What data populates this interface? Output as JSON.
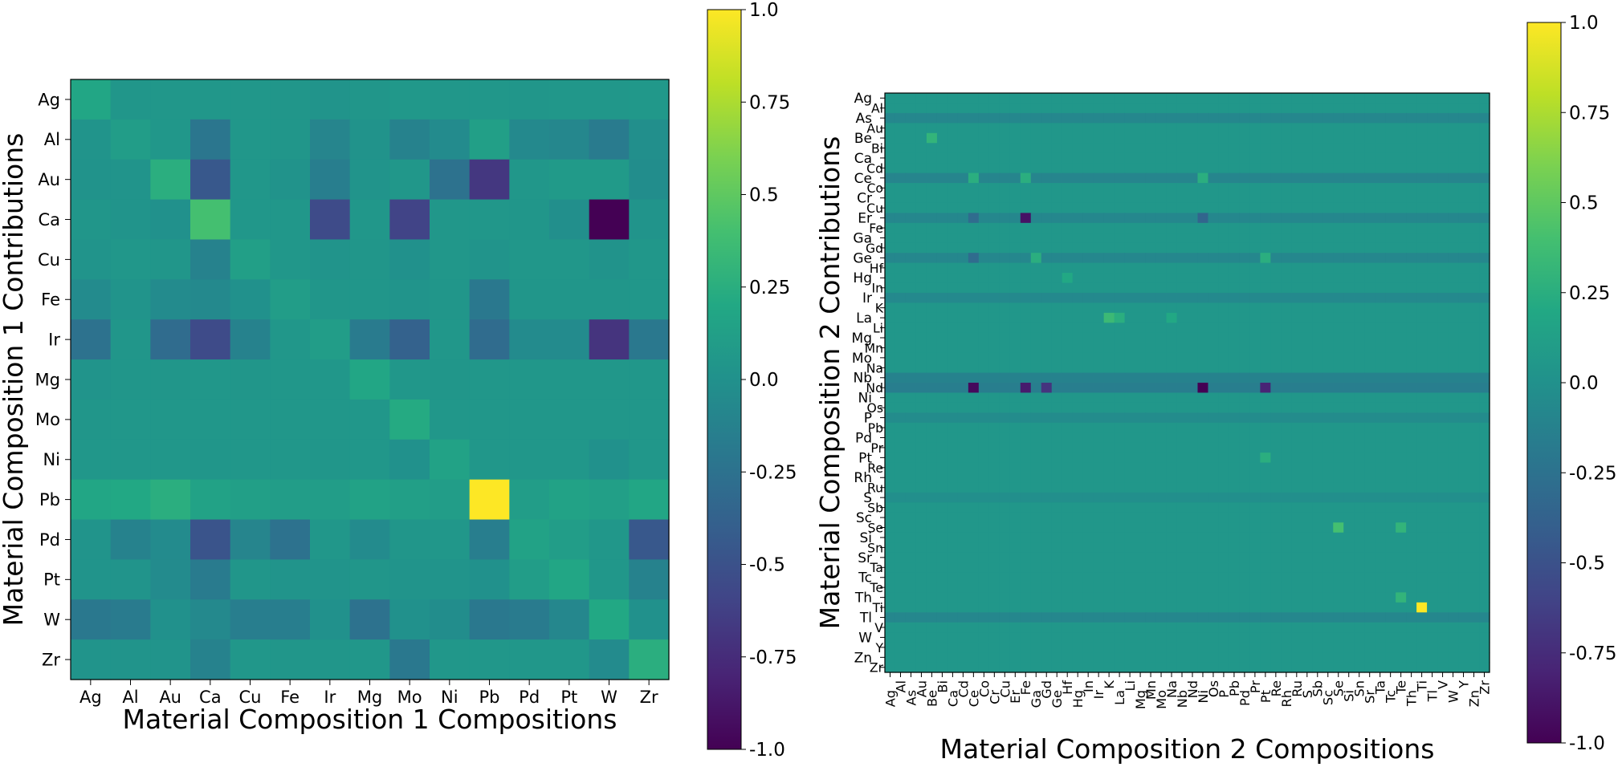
{
  "chart_data": [
    {
      "type": "heatmap",
      "title": "",
      "xlabel": "Material Composition 1 Compositions",
      "ylabel": "Material Composition 1 Contributions",
      "x_categories": [
        "Ag",
        "Al",
        "Au",
        "Ca",
        "Cu",
        "Fe",
        "Ir",
        "Mg",
        "Mo",
        "Ni",
        "Pb",
        "Pd",
        "Pt",
        "W",
        "Zr"
      ],
      "y_categories": [
        "Ag",
        "Al",
        "Au",
        "Ca",
        "Cu",
        "Fe",
        "Ir",
        "Mg",
        "Mo",
        "Ni",
        "Pb",
        "Pd",
        "Pt",
        "W",
        "Zr"
      ],
      "colormap": "viridis",
      "vmin": -1.0,
      "vmax": 1.0,
      "colorbar_ticks": [
        "1.0",
        "0.75",
        "0.5",
        "0.25",
        "0.0",
        "-0.25",
        "-0.5",
        "-0.75",
        "-1.0"
      ],
      "values": [
        [
          0.18,
          0.04,
          0.05,
          0.05,
          0.05,
          0.04,
          0.03,
          0.04,
          0.06,
          0.05,
          0.05,
          0.04,
          0.05,
          0.05,
          0.06
        ],
        [
          0.03,
          0.1,
          0.05,
          -0.22,
          0.05,
          0.04,
          -0.1,
          0.02,
          -0.12,
          -0.05,
          0.12,
          -0.06,
          -0.08,
          -0.18,
          -0.02
        ],
        [
          0.02,
          0.03,
          0.25,
          -0.45,
          0.05,
          0.02,
          -0.15,
          0.03,
          0.05,
          -0.25,
          -0.68,
          0.05,
          0.08,
          0.08,
          -0.03
        ],
        [
          0.04,
          0.03,
          0.0,
          0.4,
          0.05,
          0.05,
          -0.55,
          0.05,
          -0.6,
          0.05,
          0.05,
          0.04,
          -0.02,
          -1.0,
          0.03
        ],
        [
          0.03,
          0.05,
          0.04,
          -0.12,
          0.12,
          0.05,
          0.03,
          0.04,
          0.0,
          0.05,
          0.03,
          0.05,
          0.05,
          0.02,
          0.05
        ],
        [
          -0.05,
          0.03,
          -0.05,
          -0.06,
          0.0,
          0.1,
          0.04,
          0.04,
          0.03,
          0.04,
          -0.2,
          0.04,
          0.04,
          0.04,
          0.05
        ],
        [
          -0.25,
          0.04,
          -0.3,
          -0.55,
          -0.12,
          0.05,
          0.1,
          -0.18,
          -0.38,
          0.05,
          -0.3,
          -0.05,
          -0.05,
          -0.7,
          -0.2
        ],
        [
          0.03,
          0.04,
          0.04,
          0.05,
          0.04,
          0.05,
          0.05,
          0.18,
          0.05,
          0.04,
          0.05,
          0.05,
          0.05,
          0.05,
          0.05
        ],
        [
          0.04,
          0.05,
          0.05,
          0.05,
          0.05,
          0.05,
          0.05,
          0.05,
          0.22,
          0.05,
          0.05,
          0.05,
          0.05,
          0.05,
          0.05
        ],
        [
          0.05,
          0.05,
          0.05,
          0.04,
          0.05,
          0.05,
          0.04,
          0.05,
          0.0,
          0.15,
          0.05,
          0.05,
          0.05,
          0.0,
          0.05
        ],
        [
          0.18,
          0.2,
          0.25,
          0.15,
          0.12,
          0.1,
          0.1,
          0.15,
          0.12,
          0.1,
          1.0,
          0.1,
          0.15,
          0.12,
          0.18
        ],
        [
          0.03,
          -0.12,
          -0.05,
          -0.48,
          -0.1,
          -0.25,
          0.05,
          -0.05,
          0.04,
          0.05,
          -0.15,
          0.15,
          0.1,
          0.05,
          -0.45
        ],
        [
          0.03,
          0.03,
          -0.05,
          -0.18,
          0.04,
          0.03,
          0.03,
          0.04,
          0.03,
          0.03,
          0.0,
          0.1,
          0.18,
          0.05,
          -0.12
        ],
        [
          -0.2,
          -0.18,
          0.0,
          -0.06,
          -0.15,
          -0.15,
          0.0,
          -0.25,
          0.0,
          -0.03,
          -0.2,
          -0.18,
          -0.08,
          0.2,
          0.0
        ],
        [
          0.03,
          0.03,
          0.03,
          -0.12,
          0.05,
          0.04,
          0.04,
          0.05,
          -0.2,
          0.05,
          0.05,
          0.05,
          0.05,
          -0.05,
          0.25
        ]
      ]
    },
    {
      "type": "heatmap",
      "title": "",
      "xlabel": "Material Composition 2 Compositions",
      "ylabel": "Material Composition 2 Contributions",
      "x_categories": [
        "Ag",
        "Al",
        "As",
        "Au",
        "Be",
        "Bi",
        "Ca",
        "Cd",
        "Ce",
        "Co",
        "Cr",
        "Cu",
        "Er",
        "Fe",
        "Ga",
        "Gd",
        "Ge",
        "Hf",
        "Hg",
        "In",
        "Ir",
        "K",
        "La",
        "Li",
        "Mg",
        "Mn",
        "Mo",
        "Na",
        "Nb",
        "Nd",
        "Ni",
        "Os",
        "P",
        "Pb",
        "Pd",
        "Pr",
        "Pt",
        "Re",
        "Rh",
        "Ru",
        "S",
        "Sb",
        "Sc",
        "Se",
        "Si",
        "Sn",
        "Sr",
        "Ta",
        "Tc",
        "Te",
        "Th",
        "Ti",
        "Tl",
        "V",
        "W",
        "Y",
        "Zn",
        "Zr"
      ],
      "y_categories": [
        "Ag",
        "Al",
        "As",
        "Au",
        "Be",
        "Bi",
        "Ca",
        "Cd",
        "Ce",
        "Co",
        "Cr",
        "Cu",
        "Er",
        "Fe",
        "Ga",
        "Gd",
        "Ge",
        "Hf",
        "Hg",
        "In",
        "Ir",
        "K",
        "La",
        "Li",
        "Mg",
        "Mn",
        "Mo",
        "Na",
        "Nb",
        "Nd",
        "Ni",
        "Os",
        "P",
        "Pb",
        "Pd",
        "Pr",
        "Pt",
        "Re",
        "Rh",
        "Ru",
        "S",
        "Sb",
        "Sc",
        "Se",
        "Si",
        "Sn",
        "Sr",
        "Ta",
        "Tc",
        "Te",
        "Th",
        "Ti",
        "Tl",
        "V",
        "W",
        "Y",
        "Zn",
        "Zr"
      ],
      "colormap": "viridis",
      "vmin": -1.0,
      "vmax": 1.0,
      "colorbar_ticks": [
        "1.0",
        "0.75",
        "0.5",
        "0.25",
        "0.0",
        "-0.25",
        "-0.5",
        "-0.75",
        "-1.0"
      ],
      "background_value": 0.05,
      "row_values": [
        {
          "row": "As",
          "value": -0.08
        },
        {
          "row": "Ce",
          "value": -0.1
        },
        {
          "row": "Er",
          "value": -0.08
        },
        {
          "row": "Ge",
          "value": -0.08
        },
        {
          "row": "Ir",
          "value": -0.06
        },
        {
          "row": "Nb",
          "value": -0.12
        },
        {
          "row": "Nd",
          "value": -0.15
        },
        {
          "row": "P",
          "value": -0.04
        },
        {
          "row": "S",
          "value": -0.02
        },
        {
          "row": "Tl",
          "value": -0.08
        }
      ],
      "cells": [
        {
          "row": "Be",
          "col": "Be",
          "value": 0.3
        },
        {
          "row": "Ce",
          "col": "Ce",
          "value": 0.25
        },
        {
          "row": "Ce",
          "col": "Fe",
          "value": 0.25
        },
        {
          "row": "Ce",
          "col": "Ni",
          "value": 0.25
        },
        {
          "row": "Er",
          "col": "Fe",
          "value": -0.9
        },
        {
          "row": "Er",
          "col": "Ce",
          "value": -0.3
        },
        {
          "row": "Er",
          "col": "Ni",
          "value": -0.35
        },
        {
          "row": "Ge",
          "col": "Ce",
          "value": -0.3
        },
        {
          "row": "Ge",
          "col": "Ga",
          "value": 0.25
        },
        {
          "row": "Ge",
          "col": "Pt",
          "value": 0.25
        },
        {
          "row": "Hg",
          "col": "Hf",
          "value": 0.2
        },
        {
          "row": "La",
          "col": "K",
          "value": 0.35
        },
        {
          "row": "La",
          "col": "La",
          "value": 0.25
        },
        {
          "row": "La",
          "col": "Na",
          "value": 0.2
        },
        {
          "row": "Nd",
          "col": "Ce",
          "value": -0.95
        },
        {
          "row": "Nd",
          "col": "Fe",
          "value": -0.85
        },
        {
          "row": "Nd",
          "col": "Gd",
          "value": -0.7
        },
        {
          "row": "Nd",
          "col": "Ni",
          "value": -1.0
        },
        {
          "row": "Nd",
          "col": "Pt",
          "value": -0.8
        },
        {
          "row": "Pt",
          "col": "Pt",
          "value": 0.25
        },
        {
          "row": "Se",
          "col": "Se",
          "value": 0.4
        },
        {
          "row": "Se",
          "col": "Te",
          "value": 0.3
        },
        {
          "row": "Th",
          "col": "Te",
          "value": 0.3
        },
        {
          "row": "Ti",
          "col": "Ti",
          "value": 1.0
        }
      ]
    }
  ]
}
